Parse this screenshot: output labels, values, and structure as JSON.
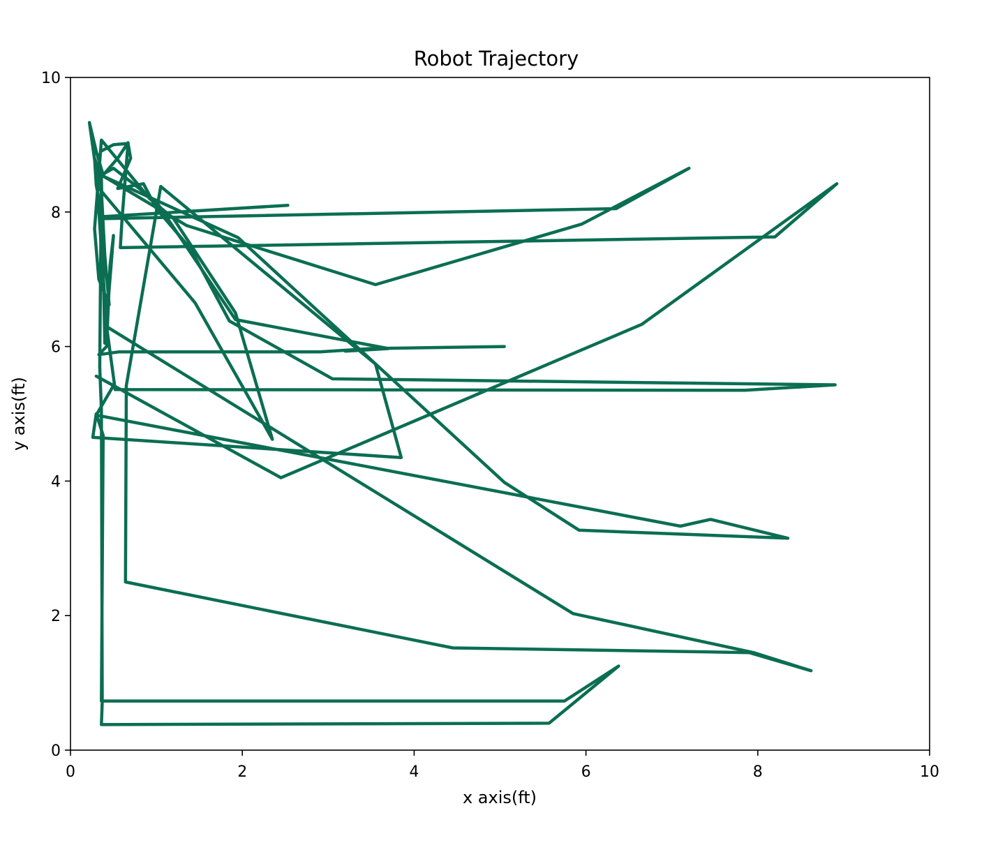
{
  "chart_data": {
    "type": "line",
    "title": "Robot Trajectory",
    "xlabel": "x axis(ft)",
    "ylabel": "y axis(ft)",
    "xlim": [
      0,
      10
    ],
    "ylim": [
      0,
      10
    ],
    "x_ticks": [
      "0",
      "2",
      "4",
      "6",
      "8",
      "10"
    ],
    "y_ticks": [
      "0",
      "2",
      "4",
      "6",
      "8",
      "10"
    ],
    "grid": false,
    "line_color": "#0b6e52",
    "series": [
      {
        "points": [
          [
            2.53,
            8.1
          ],
          [
            0.37,
            7.93
          ],
          [
            0.3,
            8.4
          ],
          [
            0.35,
            8.9
          ],
          [
            0.5,
            9.0
          ],
          [
            0.67,
            9.02
          ],
          [
            0.7,
            8.8
          ],
          [
            0.55,
            8.35
          ],
          [
            0.85,
            8.42
          ],
          [
            1.0,
            8.05
          ],
          [
            1.4,
            7.45
          ],
          [
            1.85,
            6.38
          ],
          [
            3.05,
            5.52
          ],
          [
            8.9,
            5.43
          ],
          [
            7.85,
            5.35
          ],
          [
            0.52,
            5.36
          ],
          [
            0.42,
            6.3
          ],
          [
            0.3,
            8.6
          ],
          [
            0.22,
            9.33
          ],
          [
            0.3,
            8.9
          ],
          [
            0.38,
            8.55
          ],
          [
            0.55,
            8.8
          ],
          [
            0.67,
            9.03
          ],
          [
            0.6,
            7.9
          ],
          [
            0.58,
            7.47
          ],
          [
            8.2,
            7.63
          ],
          [
            8.92,
            8.42
          ],
          [
            6.65,
            6.33
          ],
          [
            2.45,
            4.05
          ],
          [
            0.3,
            5.56
          ],
          [
            0.5,
            5.42
          ],
          [
            0.3,
            4.98
          ],
          [
            7.1,
            3.33
          ],
          [
            7.45,
            3.43
          ],
          [
            8.35,
            3.15
          ],
          [
            5.92,
            3.27
          ],
          [
            5.05,
            3.98
          ],
          [
            1.95,
            7.62
          ],
          [
            0.35,
            8.55
          ],
          [
            0.4,
            7.35
          ],
          [
            0.45,
            6.62
          ],
          [
            0.33,
            7.0
          ],
          [
            0.28,
            7.75
          ],
          [
            0.36,
            9.07
          ],
          [
            0.92,
            8.2
          ],
          [
            1.2,
            7.9
          ],
          [
            1.92,
            6.5
          ],
          [
            2.35,
            4.62
          ],
          [
            1.45,
            6.65
          ],
          [
            0.3,
            8.4
          ],
          [
            0.28,
            8.8
          ],
          [
            0.36,
            8.5
          ],
          [
            0.4,
            6.05
          ],
          [
            0.5,
            7.65
          ],
          [
            0.46,
            7.2
          ],
          [
            0.42,
            6.0
          ],
          [
            0.33,
            5.88
          ],
          [
            0.56,
            5.92
          ],
          [
            2.9,
            5.92
          ],
          [
            3.5,
            5.97
          ],
          [
            5.05,
            6.0
          ]
        ]
      },
      {
        "points": [
          [
            0.44,
            6.28
          ],
          [
            5.85,
            2.03
          ],
          [
            7.95,
            1.45
          ],
          [
            8.62,
            1.18
          ],
          [
            7.9,
            1.45
          ],
          [
            4.45,
            1.52
          ],
          [
            0.64,
            2.5
          ],
          [
            0.65,
            5.42
          ],
          [
            1.05,
            8.38
          ],
          [
            3.55,
            5.74
          ],
          [
            3.85,
            4.35
          ],
          [
            0.26,
            4.65
          ],
          [
            0.3,
            5.0
          ],
          [
            0.38,
            4.68
          ],
          [
            0.36,
            0.73
          ],
          [
            5.75,
            0.73
          ],
          [
            6.38,
            1.25
          ],
          [
            5.57,
            0.4
          ],
          [
            0.36,
            0.38
          ],
          [
            0.37,
            0.72
          ],
          [
            0.36,
            5.06
          ],
          [
            0.34,
            5.7
          ],
          [
            0.36,
            8.55
          ],
          [
            0.5,
            8.65
          ],
          [
            1.0,
            8.15
          ],
          [
            1.92,
            6.4
          ],
          [
            3.7,
            5.97
          ],
          [
            3.2,
            5.93
          ]
        ]
      },
      {
        "points": [
          [
            0.36,
            8.55
          ],
          [
            1.35,
            7.8
          ],
          [
            3.55,
            6.92
          ],
          [
            5.95,
            7.82
          ],
          [
            7.2,
            8.65
          ],
          [
            6.35,
            8.05
          ],
          [
            0.36,
            7.9
          ]
        ]
      }
    ]
  }
}
